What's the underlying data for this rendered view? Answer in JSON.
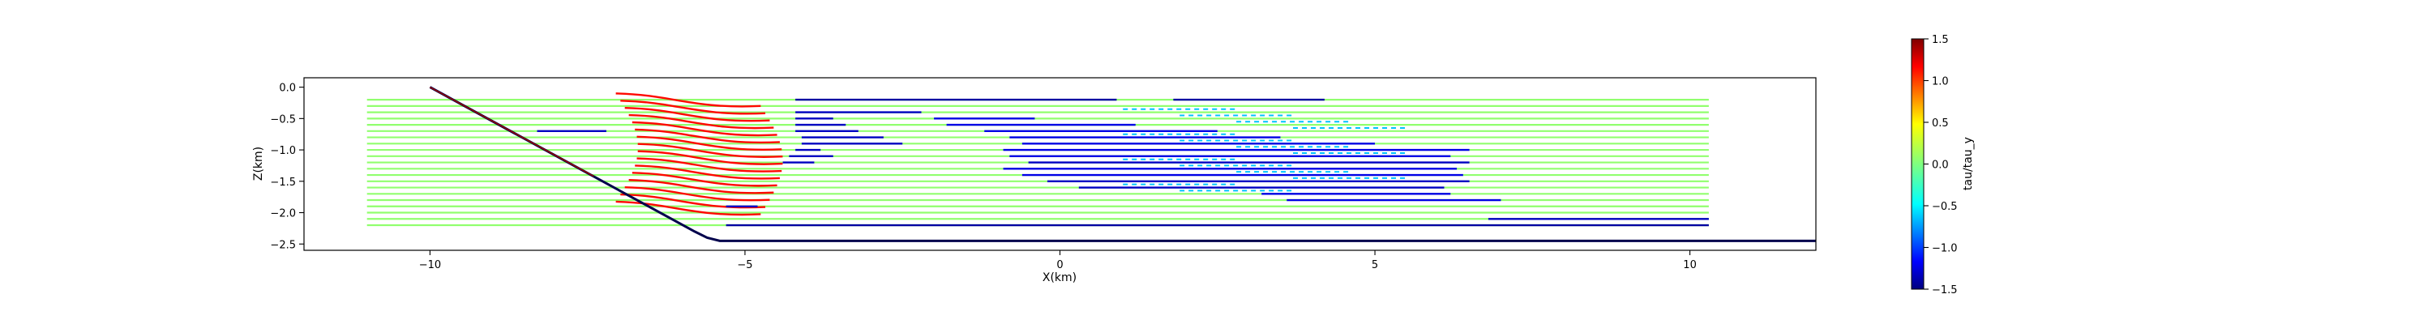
{
  "chart_data": {
    "type": "line",
    "title": "",
    "xlabel": "X(km)",
    "ylabel": "Z(km)",
    "xlim": [
      -12,
      12
    ],
    "ylim": [
      -2.6,
      0.15
    ],
    "xticks": [
      -10,
      -5,
      0,
      5,
      10
    ],
    "xtick_labels": [
      "−10",
      "−5",
      "0",
      "5",
      "10"
    ],
    "yticks": [
      0.0,
      -0.5,
      -1.0,
      -1.5,
      -2.0,
      -2.5
    ],
    "ytick_labels": [
      "0.0",
      "−0.5",
      "−1.0",
      "−1.5",
      "−2.0",
      "−2.5"
    ],
    "grid": false,
    "colorbar": {
      "label": "tau/tau_y",
      "range": [
        -1.5,
        1.5
      ],
      "ticks": [
        1.5,
        1.0,
        0.5,
        0.0,
        -0.5,
        -1.0,
        -1.5
      ],
      "tick_labels": [
        "1.5",
        "1.0",
        "0.5",
        "0.0",
        "−0.5",
        "−1.0",
        "−1.5"
      ],
      "colormap": "jet"
    },
    "levels": {
      "z_top": -0.2,
      "z_bottom": -2.2,
      "count": 21,
      "x_start": -11.0,
      "x_end": 10.3
    },
    "boundary": {
      "name": "",
      "color": "#00004c",
      "x": [
        -10,
        -5.8,
        -5.6,
        -5.4,
        12
      ],
      "y": [
        0.0,
        -2.3,
        -2.4,
        -2.45,
        -2.45
      ]
    },
    "segments": [
      {
        "z": -0.2,
        "x0": -4.2,
        "x1": 0.9,
        "value": -1.4
      },
      {
        "z": -0.2,
        "x0": 1.8,
        "x1": 4.2,
        "value": -1.4
      },
      {
        "z": -0.4,
        "x0": -4.2,
        "x1": -2.2,
        "value": -1.3
      },
      {
        "z": -0.5,
        "x0": -4.2,
        "x1": -3.6,
        "value": -1.3
      },
      {
        "z": -0.5,
        "x0": -2.0,
        "x1": -0.4,
        "value": -1.2
      },
      {
        "z": -0.6,
        "x0": -4.2,
        "x1": -3.4,
        "value": -1.3
      },
      {
        "z": -0.6,
        "x0": -1.8,
        "x1": 1.2,
        "value": -1.2
      },
      {
        "z": -0.7,
        "x0": -8.3,
        "x1": -7.2,
        "value": -1.3
      },
      {
        "z": -0.7,
        "x0": -4.2,
        "x1": -3.2,
        "value": -1.3
      },
      {
        "z": -0.7,
        "x0": -1.2,
        "x1": 2.5,
        "value": -1.2
      },
      {
        "z": -0.8,
        "x0": -4.1,
        "x1": -2.8,
        "value": -1.3
      },
      {
        "z": -0.8,
        "x0": -0.8,
        "x1": 3.5,
        "value": -1.2
      },
      {
        "z": -0.9,
        "x0": -4.1,
        "x1": -2.5,
        "value": -1.3
      },
      {
        "z": -0.9,
        "x0": -0.6,
        "x1": 5.0,
        "value": -1.2
      },
      {
        "z": -1.0,
        "x0": -4.2,
        "x1": -3.8,
        "value": -1.3
      },
      {
        "z": -1.0,
        "x0": -0.9,
        "x1": 6.5,
        "value": -1.2
      },
      {
        "z": -1.1,
        "x0": -4.3,
        "x1": -3.6,
        "value": -1.3
      },
      {
        "z": -1.1,
        "x0": -0.8,
        "x1": 6.2,
        "value": -1.2
      },
      {
        "z": -1.2,
        "x0": -4.4,
        "x1": -3.9,
        "value": -1.3
      },
      {
        "z": -1.2,
        "x0": -0.5,
        "x1": 6.5,
        "value": -1.3
      },
      {
        "z": -1.3,
        "x0": -0.9,
        "x1": 6.3,
        "value": -1.2
      },
      {
        "z": -1.4,
        "x0": -0.6,
        "x1": 6.4,
        "value": -1.2
      },
      {
        "z": -1.5,
        "x0": -0.2,
        "x1": 6.5,
        "value": -1.3
      },
      {
        "z": -1.6,
        "x0": 0.3,
        "x1": 6.1,
        "value": -1.3
      },
      {
        "z": -1.7,
        "x0": 3.2,
        "x1": 6.2,
        "value": -1.2
      },
      {
        "z": -1.8,
        "x0": 3.6,
        "x1": 7.0,
        "value": -1.2
      },
      {
        "z": -1.9,
        "x0": -5.3,
        "x1": -4.8,
        "value": -1.3
      },
      {
        "z": -2.1,
        "x0": 6.8,
        "x1": 10.3,
        "value": -1.3
      },
      {
        "z": -2.2,
        "x0": -5.3,
        "x1": 10.3,
        "value": -1.4
      }
    ]
  }
}
